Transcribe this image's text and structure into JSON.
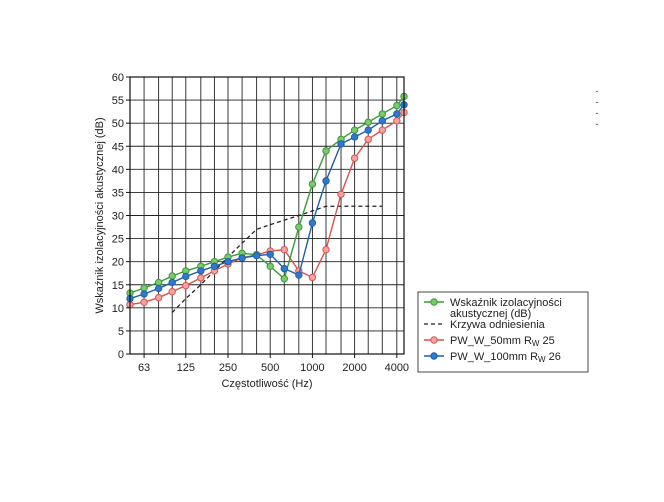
{
  "chart_data": {
    "type": "line",
    "title": "",
    "ylabel": "Wskaźnik izolacyjności akustycznej (dB)",
    "xlabel": "Częstotliwość (Hz)",
    "ylim": [
      0,
      60
    ],
    "y_ticks": [
      0,
      5,
      10,
      15,
      20,
      25,
      30,
      35,
      40,
      45,
      50,
      55,
      60
    ],
    "x_tick_labels": [
      "63",
      "125",
      "250",
      "500",
      "1000",
      "2000",
      "4000"
    ],
    "x_tick_values": [
      63,
      125,
      250,
      500,
      1000,
      2000,
      4000
    ],
    "x_scale": "log",
    "xlim": [
      50,
      4500
    ],
    "grid": true,
    "legend_position": "bottom-right",
    "x": [
      50,
      63,
      80,
      100,
      125,
      160,
      200,
      250,
      315,
      400,
      500,
      630,
      800,
      1000,
      1250,
      1600,
      2000,
      2500,
      3150,
      4000,
      4500
    ],
    "series": [
      {
        "name": "Wskaźnik izolacyjności akustycznej (dB)",
        "legend_lines": [
          "Wskaźnik izolacyjności",
          "akustycznej (dB)"
        ],
        "color": "#3a9a3a",
        "marker_fill": "#7cc86c",
        "values": [
          13.2,
          14.3,
          15.5,
          16.9,
          18.0,
          19.0,
          20.0,
          21.0,
          21.8,
          21.5,
          19.0,
          16.3,
          27.5,
          36.8,
          44.0,
          46.5,
          48.5,
          50.2,
          52.0,
          53.8,
          55.8
        ]
      },
      {
        "name": "Krzywa odniesienia",
        "legend_lines": [
          "Krzywa odniesienia"
        ],
        "color": "#222222",
        "dashed": true,
        "marker": false,
        "x": [
          100,
          125,
          160,
          200,
          250,
          315,
          400,
          500,
          630,
          800,
          1000,
          1250,
          1600,
          2000,
          2500,
          3150
        ],
        "values": [
          9,
          12,
          15,
          18,
          21,
          24,
          27,
          28,
          29,
          30,
          31,
          32,
          32,
          32,
          32,
          32
        ]
      },
      {
        "name": "PW_W_50mm Rw 25",
        "legend_main": "PW_W_50mm R",
        "legend_sub": "W",
        "legend_tail": " 25",
        "color": "#d9534f",
        "marker_fill": "#f4a3a0",
        "values": [
          10.7,
          11.2,
          12.2,
          13.5,
          14.8,
          16.5,
          18.0,
          19.5,
          20.8,
          21.5,
          22.3,
          22.6,
          18.0,
          16.6,
          22.6,
          34.6,
          42.4,
          46.5,
          48.5,
          50.5,
          52.3
        ]
      },
      {
        "name": "PW_W_100mm Rw 26",
        "legend_main": "PW_W_100mm R",
        "legend_sub": "W",
        "legend_tail": " 26",
        "color": "#1f5fa8",
        "marker_fill": "#2f7ad0",
        "values": [
          12.0,
          13.0,
          14.2,
          15.5,
          16.8,
          18.0,
          19.0,
          20.0,
          20.8,
          21.3,
          21.6,
          18.5,
          17.1,
          28.4,
          37.5,
          45.5,
          47.0,
          48.5,
          50.5,
          52.0,
          54.0
        ]
      }
    ]
  },
  "edge_glyphs": [
    "-",
    "-",
    "-",
    "-"
  ]
}
